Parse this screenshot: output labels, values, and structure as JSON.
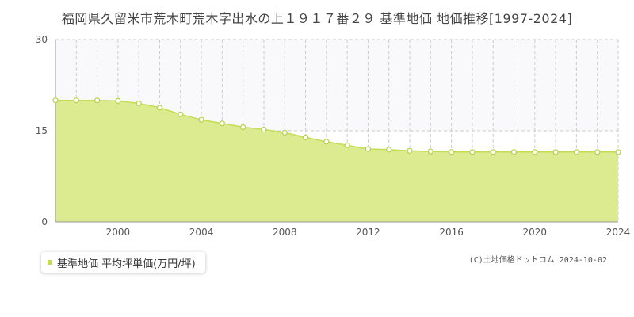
{
  "title": "福岡県久留米市荒木町荒木字出水の上１９１７番２９ 基準地価 地価推移[1997-2024]",
  "legend": {
    "label": "基準地価 平均坪単価(万円/坪)"
  },
  "copyright": "(C)土地価格ドットコム 2024-10-02",
  "colors": {
    "fill": "#dceb8f",
    "line": "#c3dc55",
    "marker_stroke": "#b5d14a",
    "upper_band": "#f9f8fb",
    "grid": "#cccccc",
    "axis": "#999999"
  },
  "chart_data": {
    "type": "area",
    "title": "福岡県久留米市荒木町荒木字出水の上１９１７番２９ 基準地価 地価推移[1997-2024]",
    "xlabel": "",
    "ylabel": "",
    "xlim": [
      1997,
      2024
    ],
    "ylim": [
      0,
      30
    ],
    "y_ticks": [
      0,
      15,
      30
    ],
    "x_ticks": [
      2000,
      2004,
      2008,
      2012,
      2016,
      2020,
      2024
    ],
    "grid": true,
    "legend_position": "bottom-left",
    "series": [
      {
        "name": "基準地価 平均坪単価(万円/坪)",
        "x": [
          1997,
          1998,
          1999,
          2000,
          2001,
          2002,
          2003,
          2004,
          2005,
          2006,
          2007,
          2008,
          2009,
          2010,
          2011,
          2012,
          2013,
          2014,
          2015,
          2016,
          2017,
          2018,
          2019,
          2020,
          2021,
          2022,
          2023,
          2024
        ],
        "values": [
          20,
          20,
          20,
          19.9,
          19.5,
          18.8,
          17.7,
          16.8,
          16.2,
          15.6,
          15.2,
          14.7,
          13.9,
          13.2,
          12.6,
          12.0,
          11.9,
          11.7,
          11.6,
          11.5,
          11.5,
          11.5,
          11.5,
          11.5,
          11.5,
          11.5,
          11.5,
          11.5
        ]
      }
    ]
  }
}
